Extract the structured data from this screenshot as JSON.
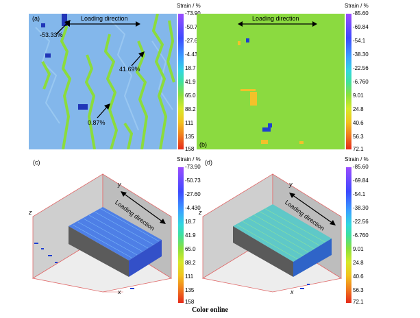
{
  "panels": {
    "a": {
      "label": "(a)",
      "loading_label": "Loading direction",
      "annotations": [
        "-53.33%",
        "41.69%",
        "0.87%"
      ]
    },
    "b": {
      "label": "(b)",
      "loading_label": "Loading direction"
    },
    "c": {
      "label": "(c)",
      "loading_label": "Loading direction",
      "axis_z": "z",
      "axis_y": "y",
      "axis_x": "x"
    },
    "d": {
      "label": "(d)",
      "loading_label": "Loading direction",
      "axis_z": "z",
      "axis_y": "y",
      "axis_x": "x"
    }
  },
  "colorbar_left": {
    "title": "Strain / %",
    "ticks": [
      "-73.90",
      "-50.73",
      "-27.60",
      "-4.430",
      "18.7",
      "41.9",
      "65.0",
      "88.2",
      "111",
      "135",
      "158"
    ]
  },
  "colorbar_right": {
    "title": "Strain / %",
    "ticks": [
      "-85.60",
      "-69.84",
      "-54.1",
      "-38.30",
      "-22.56",
      "-6.760",
      "9.01",
      "24.8",
      "40.6",
      "56.3",
      "72.1"
    ]
  },
  "caption": "Color online",
  "colors": {
    "map_blue": "#7fb6ea",
    "map_green": "#8bdc3c",
    "dark_blue": "#1f3fd0",
    "orange": "#f5a623"
  }
}
